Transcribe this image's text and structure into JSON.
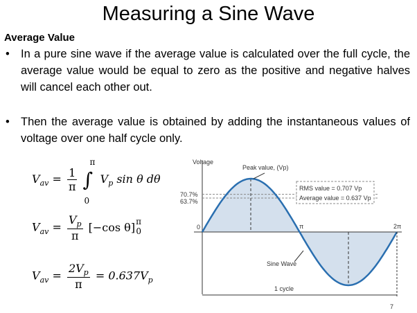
{
  "title": "Measuring a Sine Wave",
  "section": "Average Value",
  "bullets": [
    "In a pure sine wave if the average value is calculated over the full cycle, the average value would be equal to zero as the positive and negative halves will cancel each other out.",
    "Then the average value is obtained by adding the instantaneous values of voltage over one half cycle only."
  ],
  "equations": [
    {
      "lhs": "V",
      "lhs_sub": "av",
      "eq": "=",
      "num": "1",
      "den": "π",
      "integral": "∫",
      "upper": "π",
      "lower": "0",
      "body": "V",
      "body_sub": "p",
      "rest": "sin θ  dθ"
    },
    {
      "lhs": "V",
      "lhs_sub": "av",
      "eq": "=",
      "num": "V",
      "num_sub": "p",
      "den": "π",
      "bracket": "[−cos θ]",
      "upper": "π",
      "lower": "0"
    },
    {
      "lhs": "V",
      "lhs_sub": "av",
      "eq": "=",
      "num": "2V",
      "num_sub": "p",
      "den": "π",
      "eq2": "=",
      "result": "0.637V",
      "result_sub": "p"
    }
  ],
  "diagram": {
    "y_label": "Voltage",
    "peak": "Peak value, (Vp)",
    "rms_pct": "70.7%",
    "avg_pct": "63.7%",
    "rms": "RMS value = 0.707 Vp",
    "avg": "Average value = 0.637 Vp",
    "zero": "0",
    "pi": "π",
    "two_pi": "2π",
    "wave": "Sine Wave",
    "cycle": "1 cycle"
  },
  "page_number": "7"
}
